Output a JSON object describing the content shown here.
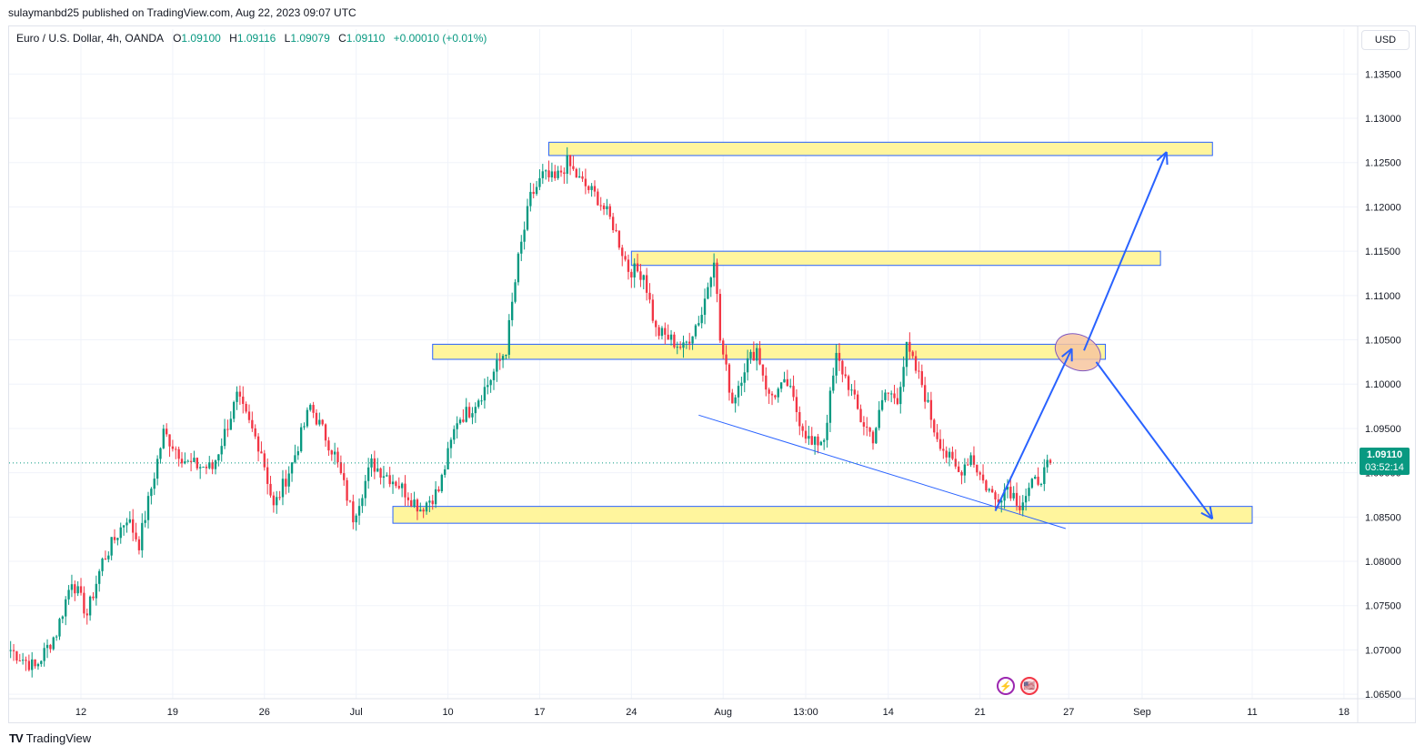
{
  "header": {
    "published": "sulaymanbd25 published on TradingView.com, Aug 22, 2023 09:07 UTC"
  },
  "legend": {
    "symbol": "Euro / U.S. Dollar, 4h, OANDA",
    "o_label": "O",
    "o_value": "1.09100",
    "h_label": "H",
    "h_value": "1.09116",
    "l_label": "L",
    "l_value": "1.09079",
    "c_label": "C",
    "c_value": "1.09110",
    "change": "+0.00010 (+0.01%)"
  },
  "currency": "USD",
  "last_price": {
    "price": "1.09110",
    "countdown": "03:52:14"
  },
  "footer": {
    "brand": "TradingView",
    "logo": "TV"
  },
  "events": {
    "bolt_icon": "lightning-icon",
    "flag_icon": "us-flag-icon",
    "bolt_glyph": "⚡",
    "flag_glyph": "🇺🇸"
  },
  "chart_data": {
    "type": "candlestick",
    "ylim": [
      1.0645,
      1.1375
    ],
    "y_ticks": [
      "1.13500",
      "1.13000",
      "1.12500",
      "1.12000",
      "1.11500",
      "1.11000",
      "1.10500",
      "1.10000",
      "1.09500",
      "1.09000",
      "1.08500",
      "1.08000",
      "1.07500",
      "1.07000",
      "1.06500"
    ],
    "x_ticks": [
      {
        "label": "12",
        "idx": 23
      },
      {
        "label": "19",
        "idx": 53
      },
      {
        "label": "26",
        "idx": 83
      },
      {
        "label": "Jul",
        "idx": 113
      },
      {
        "label": "10",
        "idx": 143
      },
      {
        "label": "17",
        "idx": 173
      },
      {
        "label": "24",
        "idx": 203
      },
      {
        "label": "Aug",
        "idx": 233
      },
      {
        "label": "13:00",
        "idx": 260
      },
      {
        "label": "14",
        "idx": 287
      },
      {
        "label": "21",
        "idx": 317
      },
      {
        "label": "27",
        "idx": 346
      },
      {
        "label": "Sep",
        "idx": 370
      },
      {
        "label": "11",
        "idx": 406
      },
      {
        "label": "18",
        "idx": 436
      }
    ],
    "waypoints": [
      [
        0,
        1.07
      ],
      [
        8,
        1.068
      ],
      [
        15,
        1.072
      ],
      [
        20,
        1.078
      ],
      [
        25,
        1.074
      ],
      [
        30,
        1.08
      ],
      [
        38,
        1.085
      ],
      [
        42,
        1.082
      ],
      [
        50,
        1.0945
      ],
      [
        58,
        1.091
      ],
      [
        66,
        1.0905
      ],
      [
        74,
        1.0985
      ],
      [
        82,
        1.0925
      ],
      [
        86,
        1.086
      ],
      [
        92,
        1.091
      ],
      [
        98,
        1.0975
      ],
      [
        106,
        1.092
      ],
      [
        112,
        1.085
      ],
      [
        118,
        1.091
      ],
      [
        126,
        1.089
      ],
      [
        134,
        1.086
      ],
      [
        140,
        1.088
      ],
      [
        146,
        1.096
      ],
      [
        150,
        1.097
      ],
      [
        156,
        1.1
      ],
      [
        162,
        1.104
      ],
      [
        166,
        1.114
      ],
      [
        170,
        1.121
      ],
      [
        174,
        1.1235
      ],
      [
        178,
        1.123
      ],
      [
        182,
        1.125
      ],
      [
        186,
        1.123
      ],
      [
        192,
        1.121
      ],
      [
        197,
        1.118
      ],
      [
        202,
        1.113
      ],
      [
        207,
        1.1125
      ],
      [
        211,
        1.106
      ],
      [
        216,
        1.105
      ],
      [
        220,
        1.104
      ],
      [
        226,
        1.108
      ],
      [
        230,
        1.1145
      ],
      [
        232,
        1.105
      ],
      [
        236,
        1.098
      ],
      [
        240,
        1.102
      ],
      [
        244,
        1.104
      ],
      [
        248,
        1.0985
      ],
      [
        254,
        1.1
      ],
      [
        258,
        1.096
      ],
      [
        262,
        1.093
      ],
      [
        266,
        1.094
      ],
      [
        270,
        1.103
      ],
      [
        274,
        1.1
      ],
      [
        278,
        1.096
      ],
      [
        282,
        1.094
      ],
      [
        286,
        1.099
      ],
      [
        290,
        1.0985
      ],
      [
        293,
        1.104
      ],
      [
        298,
        1.1
      ],
      [
        302,
        1.095
      ],
      [
        306,
        1.092
      ],
      [
        310,
        1.09
      ],
      [
        314,
        1.092
      ],
      [
        318,
        1.089
      ],
      [
        322,
        1.087
      ],
      [
        326,
        1.0885
      ],
      [
        330,
        1.0865
      ],
      [
        334,
        1.0885
      ],
      [
        338,
        1.09
      ],
      [
        340,
        1.0911
      ]
    ],
    "zones": [
      {
        "from_idx": 176,
        "to_idx": 393,
        "low": 1.1258,
        "high": 1.1273
      },
      {
        "from_idx": 203,
        "to_idx": 376,
        "low": 1.1134,
        "high": 1.115
      },
      {
        "from_idx": 138,
        "to_idx": 358,
        "low": 1.1028,
        "high": 1.1045
      },
      {
        "from_idx": 125,
        "to_idx": 406,
        "low": 1.0843,
        "high": 1.0862
      }
    ],
    "trendline": {
      "from": [
        225,
        1.0965
      ],
      "to": [
        345,
        1.0837
      ]
    },
    "arrows": [
      {
        "from": [
          322,
          1.0857
        ],
        "to": [
          347,
          1.104
        ]
      },
      {
        "from": [
          351,
          1.1038
        ],
        "to": [
          378,
          1.1262
        ]
      },
      {
        "from": [
          355,
          1.1025
        ],
        "to": [
          393,
          1.0848
        ]
      }
    ],
    "ellipse": {
      "idx": 349,
      "price": 1.1036
    },
    "last_price": 1.0911,
    "colors": {
      "up": "#089981",
      "down": "#f23645",
      "zone_fill": "#fff59d",
      "zone_stroke": "#2962ff",
      "arrow": "#2962ff",
      "ellipse_fill": "#f7c59f",
      "ellipse_stroke": "#7e57c2",
      "grid": "#f0f3fa"
    }
  }
}
